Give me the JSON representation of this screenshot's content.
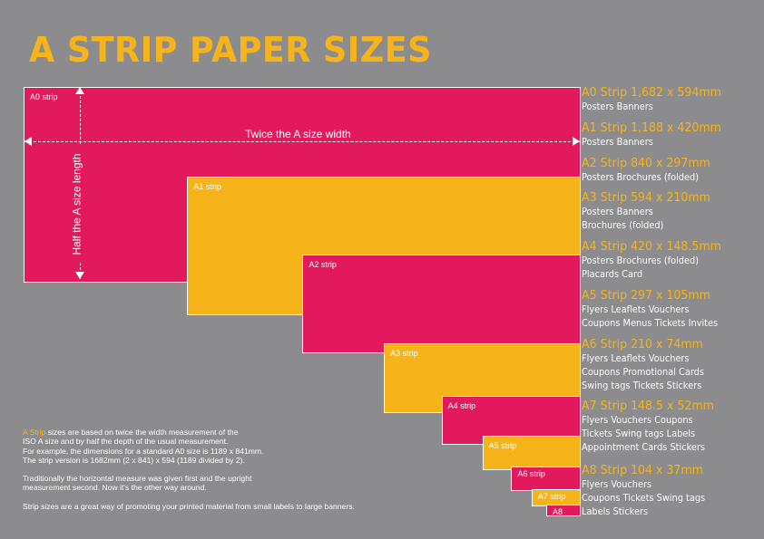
{
  "title": "A STRIP PAPER SIZES",
  "colors": {
    "background": "#8c8c8e",
    "magenta": "#e21a5d",
    "yellow": "#f7b31a",
    "white": "#ffffff"
  },
  "strips": [
    {
      "label": "A0 strip",
      "width_mm": 1682,
      "height_mm": 594,
      "color": "#e21a5d"
    },
    {
      "label": "A1 strip",
      "width_mm": 1188,
      "height_mm": 420,
      "color": "#f7b31a"
    },
    {
      "label": "A2 strip",
      "width_mm": 840,
      "height_mm": 297,
      "color": "#e21a5d"
    },
    {
      "label": "A3 strip",
      "width_mm": 594,
      "height_mm": 210,
      "color": "#f7b31a"
    },
    {
      "label": "A4 strip",
      "width_mm": 420,
      "height_mm": 148.5,
      "color": "#e21a5d"
    },
    {
      "label": "A5 strip",
      "width_mm": 297,
      "height_mm": 105,
      "color": "#f7b31a"
    },
    {
      "label": "A6 strip",
      "width_mm": 210,
      "height_mm": 74,
      "color": "#e21a5d"
    },
    {
      "label": "A7 strip",
      "width_mm": 148.5,
      "height_mm": 52,
      "color": "#f7b31a"
    },
    {
      "label": "A8",
      "width_mm": 104,
      "height_mm": 37,
      "color": "#e21a5d"
    }
  ],
  "dimensions": {
    "width_label": "Twice the A size width",
    "height_label": "Half the A size length"
  },
  "legend": [
    {
      "heading": "A0 Strip 1,682 x 594mm",
      "uses": [
        "Posters Banners"
      ]
    },
    {
      "heading": "A1 Strip 1,188 x 420mm",
      "uses": [
        "Posters Banners"
      ]
    },
    {
      "heading": "A2 Strip 840 x 297mm",
      "uses": [
        "Posters Brochures (folded)"
      ]
    },
    {
      "heading": "A3 Strip 594 x 210mm",
      "uses": [
        "Posters Banners",
        "Brochures (folded)"
      ]
    },
    {
      "heading": "A4 Strip 420 x 148.5mm",
      "uses": [
        "Posters Brochures (folded)",
        "Placards Card"
      ]
    },
    {
      "heading": "A5 Strip 297 x 105mm",
      "uses": [
        "Flyers Leaflets Vouchers",
        "Coupons Menus Tickets Invites"
      ]
    },
    {
      "heading": "A6 Strip 210 x 74mm",
      "uses": [
        "Flyers Leaflets Vouchers",
        "Coupons Promotional Cards",
        "Swing tags Tickets Stickers"
      ]
    },
    {
      "heading": "A7 Strip 148.5 x 52mm",
      "uses": [
        "Flyers Vouchers Coupons",
        "Tickets Swing tags Labels",
        "Appointment Cards Stickers"
      ]
    },
    {
      "heading": "A8 Strip 104 x 37mm",
      "uses": [
        "Flyers Vouchers",
        "Coupons Tickets Swing tags",
        "Labels Stickers"
      ]
    }
  ],
  "notes": {
    "p1_highlight": "A Strip",
    "p1_lines": [
      " sizes are based on twice the width measurement of the",
      "ISO A size and by half the depth of the usual measurement.",
      "For example, the dimensions for a standard A0 size is 1189 x 841mm.",
      "The strip version is 1682mm (2 x 841) x 594 (1189 divided by 2)."
    ],
    "p2_lines": [
      "Traditionally the horizontal measure was given first and the upright",
      "measurement second. Now it's the other way around."
    ],
    "p3": "Strip sizes are a great way of promoting your printed material from small labels to large banners."
  }
}
